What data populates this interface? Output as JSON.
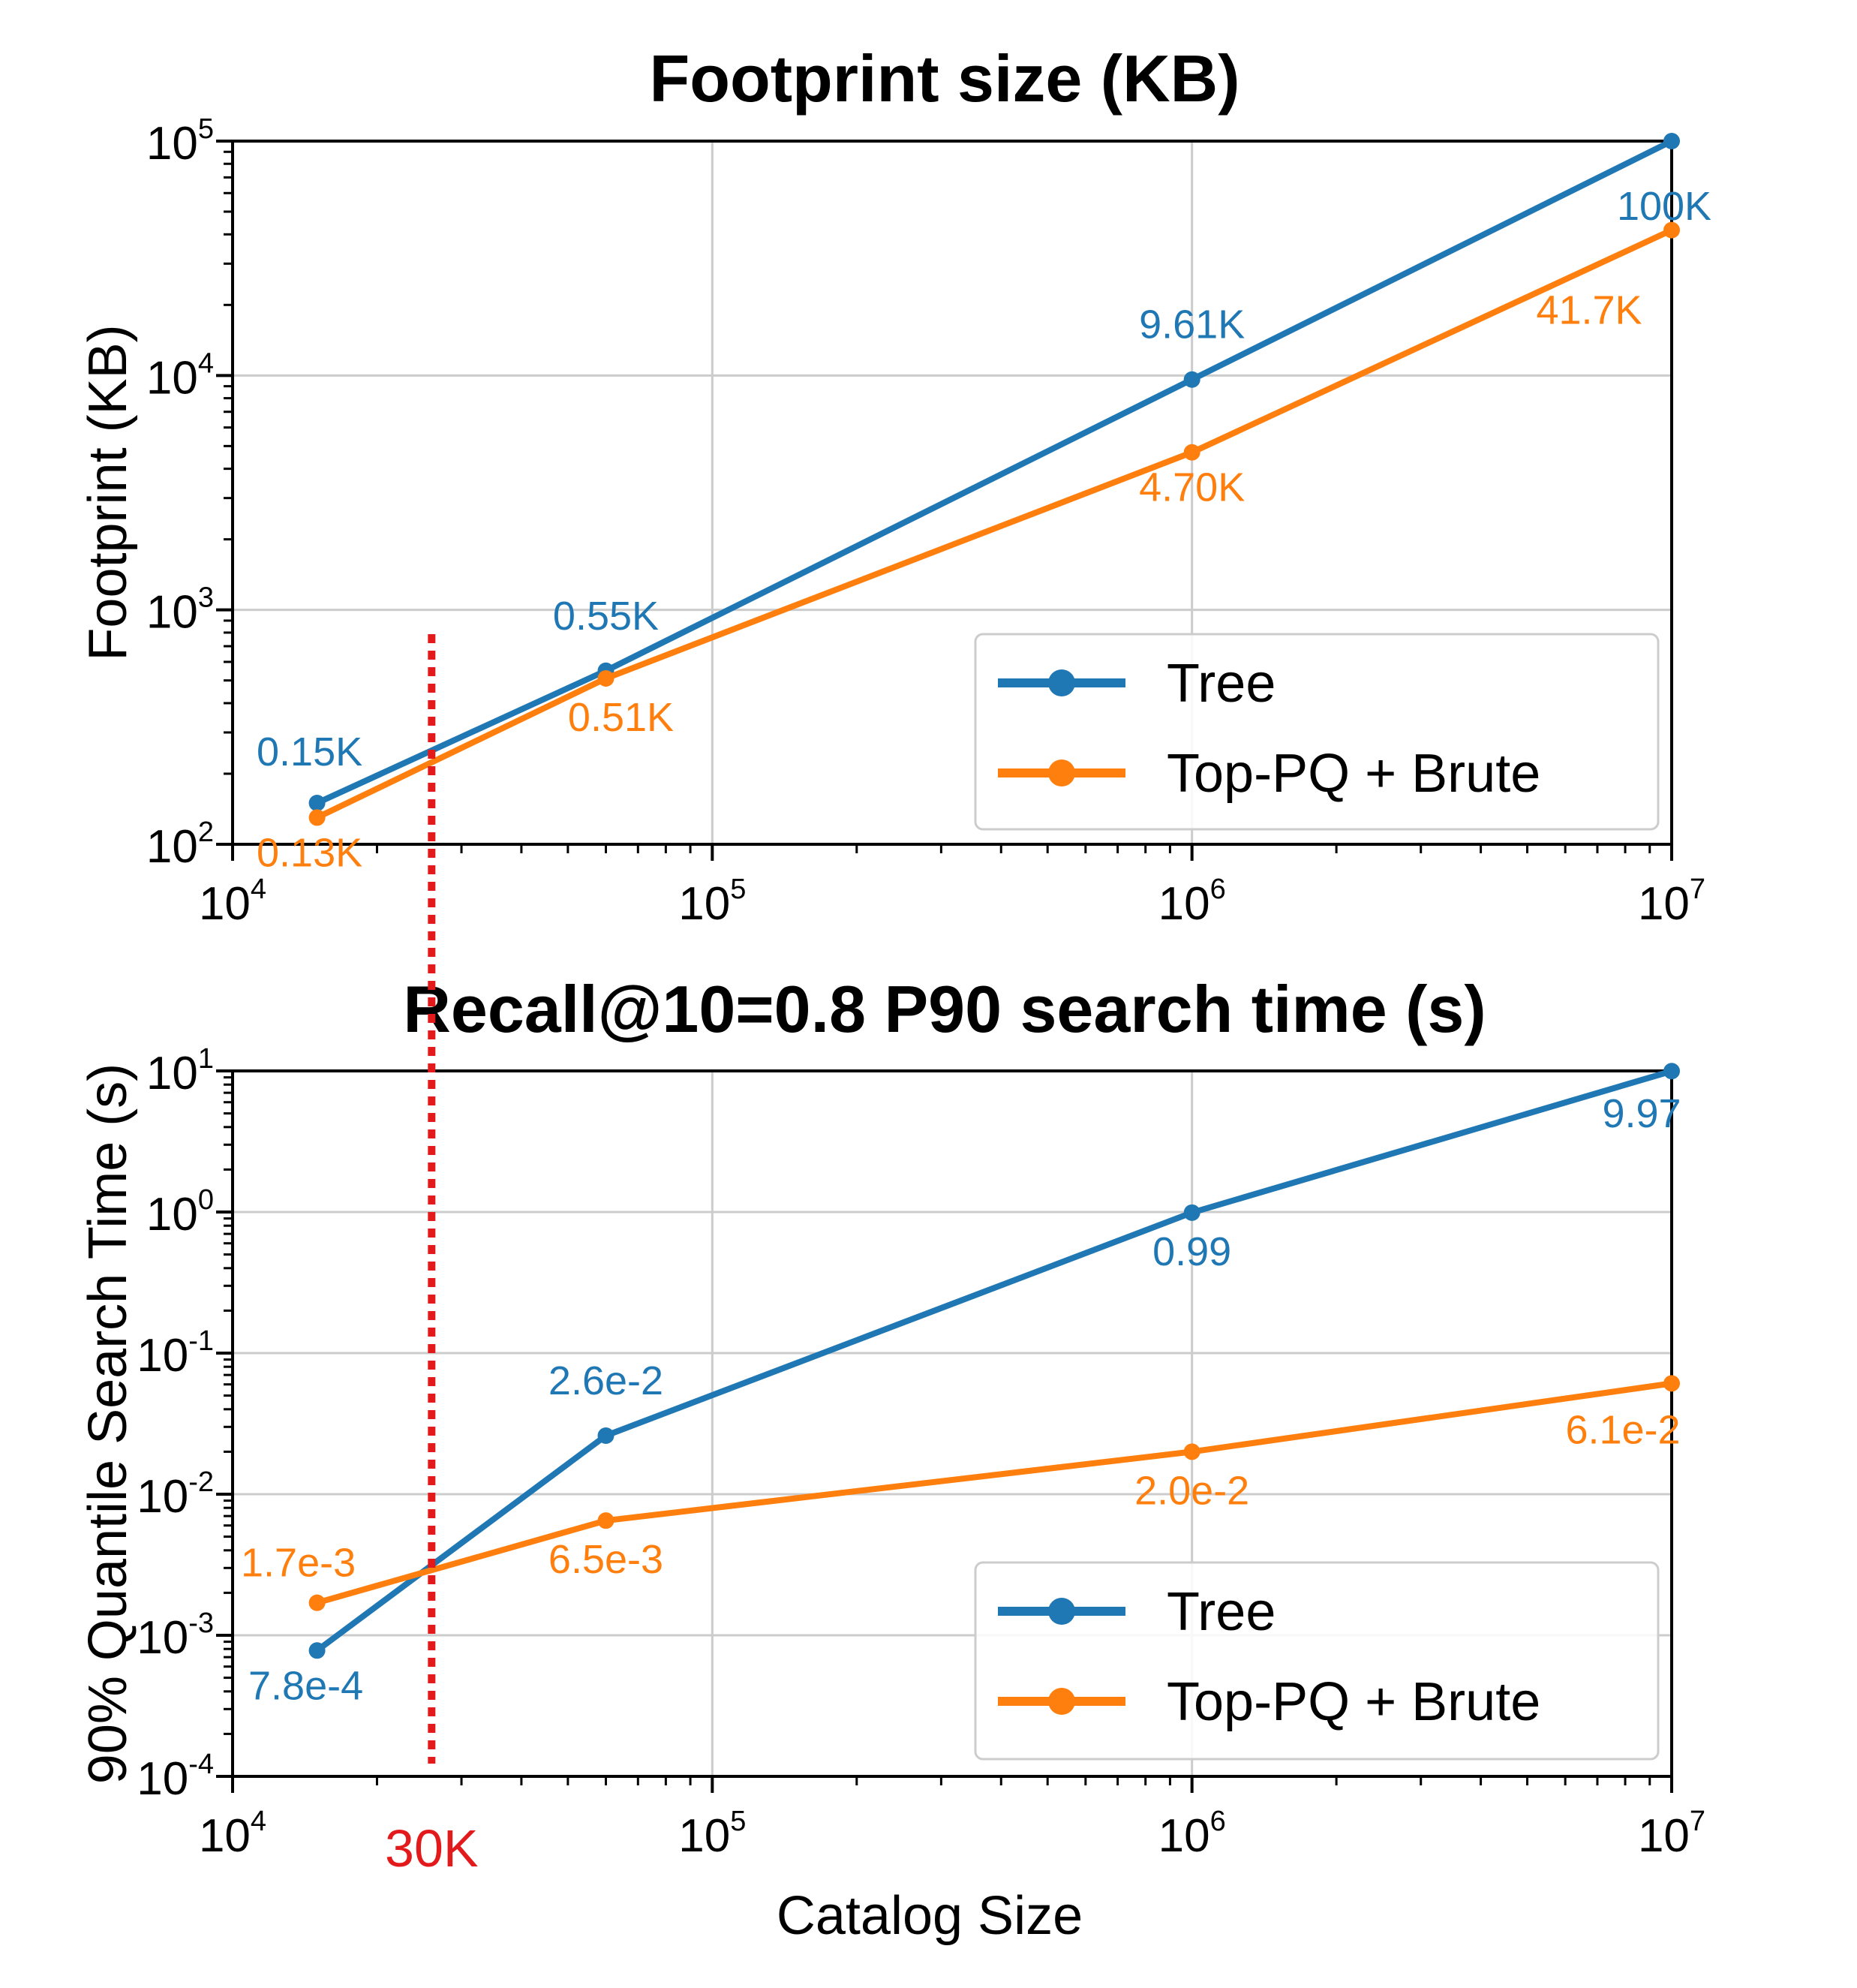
{
  "colors": {
    "tree": "#1f77b4",
    "toppq": "#ff7f0e",
    "marker": "#e31a1c",
    "grid": "#cccccc"
  },
  "chart_data": [
    {
      "type": "line",
      "title": "Footprint size (KB)",
      "xlabel": "",
      "ylabel": "Footprint (KB)",
      "xscale": "log",
      "yscale": "log",
      "xlim": [
        10000,
        10000000
      ],
      "ylim": [
        100,
        100000
      ],
      "xticks": [
        {
          "base": "10",
          "exp": "4"
        },
        {
          "base": "10",
          "exp": "5"
        },
        {
          "base": "10",
          "exp": "6"
        },
        {
          "base": "10",
          "exp": "7"
        }
      ],
      "yticks": [
        {
          "base": "10",
          "exp": "2"
        },
        {
          "base": "10",
          "exp": "3"
        },
        {
          "base": "10",
          "exp": "4"
        },
        {
          "base": "10",
          "exp": "5"
        }
      ],
      "grid": true,
      "legend": "lower-right",
      "series": [
        {
          "name": "Tree",
          "color_key": "tree",
          "x": [
            15000,
            60000,
            1000000,
            10000000
          ],
          "y": [
            150,
            550,
            9610,
            100000
          ],
          "labels": [
            "0.15K",
            "0.55K",
            "9.61K",
            "100K"
          ]
        },
        {
          "name": "Top-PQ + Brute",
          "color_key": "toppq",
          "x": [
            15000,
            60000,
            1000000,
            10000000
          ],
          "y": [
            130,
            510,
            4700,
            41700
          ],
          "labels": [
            "0.13K",
            "0.51K",
            "4.70K",
            "41.7K"
          ]
        }
      ]
    },
    {
      "type": "line",
      "title": "Recall@10=0.8 P90 search time (s)",
      "xlabel": "Catalog Size",
      "ylabel": "90% Quantile Search Time (s)",
      "xscale": "log",
      "yscale": "log",
      "xlim": [
        10000,
        10000000
      ],
      "ylim": [
        0.0001,
        10
      ],
      "xticks": [
        {
          "base": "10",
          "exp": "4"
        },
        {
          "base": "10",
          "exp": "5"
        },
        {
          "base": "10",
          "exp": "6"
        },
        {
          "base": "10",
          "exp": "7"
        }
      ],
      "yticks": [
        {
          "base": "10",
          "exp": "-4"
        },
        {
          "base": "10",
          "exp": "-3"
        },
        {
          "base": "10",
          "exp": "-2"
        },
        {
          "base": "10",
          "exp": "-1"
        },
        {
          "base": "10",
          "exp": "0"
        },
        {
          "base": "10",
          "exp": "1"
        }
      ],
      "grid": true,
      "legend": "lower-right",
      "series": [
        {
          "name": "Tree",
          "color_key": "tree",
          "x": [
            15000,
            60000,
            1000000,
            10000000
          ],
          "y": [
            0.00078,
            0.026,
            0.99,
            9.97
          ],
          "labels": [
            "7.8e-4",
            "2.6e-2",
            "0.99",
            "9.97"
          ]
        },
        {
          "name": "Top-PQ + Brute",
          "color_key": "toppq",
          "x": [
            15000,
            60000,
            1000000,
            10000000
          ],
          "y": [
            0.0017,
            0.0065,
            0.02,
            0.061
          ],
          "labels": [
            "1.7e-3",
            "6.5e-3",
            "2.0e-2",
            "6.1e-2"
          ]
        }
      ]
    }
  ],
  "annotation": {
    "vline_x": 26000,
    "text": "30K"
  }
}
